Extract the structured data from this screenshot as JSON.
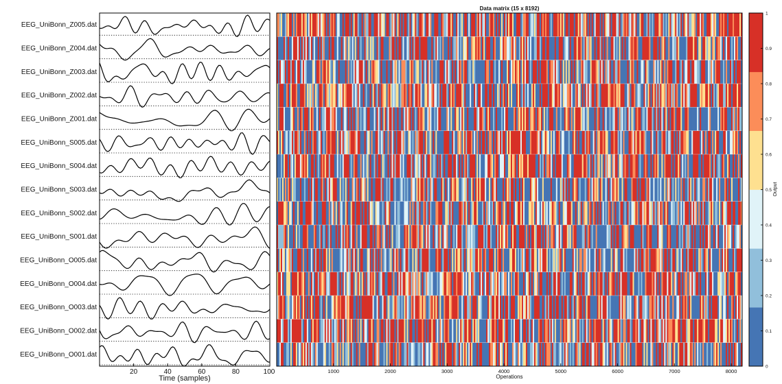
{
  "chart_data": [
    {
      "type": "line",
      "title": "",
      "xlabel": "Time (samples)",
      "xlim": [
        0,
        100
      ],
      "xticks": [
        "20",
        "40",
        "60",
        "80",
        "100"
      ],
      "series_names": [
        "EEG_UniBonn_Z005.dat",
        "EEG_UniBonn_Z004.dat",
        "EEG_UniBonn_Z003.dat",
        "EEG_UniBonn_Z002.dat",
        "EEG_UniBonn_Z001.dat",
        "EEG_UniBonn_S005.dat",
        "EEG_UniBonn_S004.dat",
        "EEG_UniBonn_S003.dat",
        "EEG_UniBonn_S002.dat",
        "EEG_UniBonn_S001.dat",
        "EEG_UniBonn_O005.dat",
        "EEG_UniBonn_O004.dat",
        "EEG_UniBonn_O003.dat",
        "EEG_UniBonn_O002.dat",
        "EEG_UniBonn_O001.dat"
      ],
      "baseline": "dotted"
    },
    {
      "type": "heatmap",
      "title": "Data matrix (15 x 8192)",
      "xlabel": "Operations",
      "rows": 15,
      "columns": 8192,
      "xticks": [
        "1000",
        "2000",
        "3000",
        "4000",
        "5000",
        "6000",
        "7000",
        "8000"
      ],
      "colorbar": {
        "label": "Output",
        "range": [
          0,
          1
        ],
        "ticks": [
          "0",
          "0.1",
          "0.2",
          "0.3",
          "0.4",
          "0.5",
          "0.6",
          "0.7",
          "0.8",
          "0.9",
          "1"
        ],
        "colors": [
          "#4575b4",
          "#91bfdb",
          "#e0f3f8",
          "#fee090",
          "#fc8d59",
          "#d73027"
        ]
      }
    }
  ]
}
